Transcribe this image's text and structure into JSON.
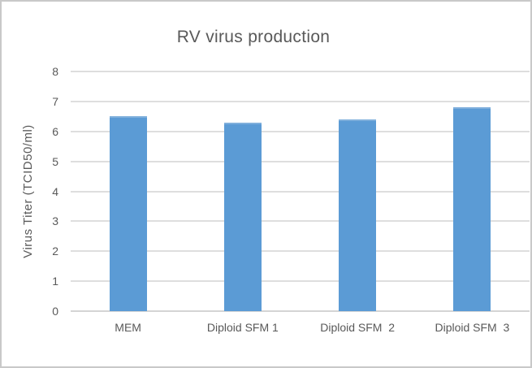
{
  "chart_data": {
    "type": "bar",
    "title": "RV virus production",
    "categories": [
      "MEM",
      "Diploid SFM 1",
      "Diploid SFM  2",
      "Diploid SFM  3"
    ],
    "values": [
      6.5,
      6.3,
      6.4,
      6.8
    ],
    "xlabel": "",
    "ylabel": "Virus Titer (TCID50/ml)",
    "ylim": [
      0,
      8
    ],
    "yticks": [
      0,
      1,
      2,
      3,
      4,
      5,
      6,
      7,
      8
    ],
    "grid": true,
    "legend_position": "none",
    "colors": {
      "bar_fill": "#5B9BD5",
      "bar_top_edge": "#7FAFDC",
      "gridline": "#DEDEDE",
      "axis_line": "#D4D4D4",
      "text": "#595959",
      "frame_border": "#C9C9C9",
      "background": "#FFFFFF"
    }
  }
}
